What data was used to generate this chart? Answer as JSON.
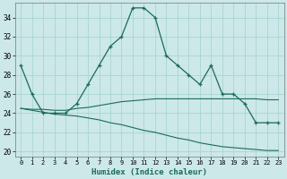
{
  "xlabel": "Humidex (Indice chaleur)",
  "ylabel": "",
  "xlim": [
    -0.5,
    23.5
  ],
  "ylim": [
    19.5,
    35.5
  ],
  "yticks": [
    20,
    22,
    24,
    26,
    28,
    30,
    32,
    34
  ],
  "xticks": [
    0,
    1,
    2,
    3,
    4,
    5,
    6,
    7,
    8,
    9,
    10,
    11,
    12,
    13,
    14,
    15,
    16,
    17,
    18,
    19,
    20,
    21,
    22,
    23
  ],
  "bg_color": "#cce8e8",
  "line_color": "#1a6b5a",
  "grid_color": "#aad4d4",
  "main_line": [
    29,
    26,
    24,
    24,
    24,
    25,
    27,
    29,
    31,
    32,
    35,
    35,
    34,
    30,
    29,
    28,
    27,
    29,
    26,
    26,
    25,
    23,
    23,
    23
  ],
  "upper_line": [
    24.5,
    24.4,
    24.4,
    24.3,
    24.3,
    24.5,
    24.6,
    24.8,
    25.0,
    25.2,
    25.3,
    25.4,
    25.5,
    25.5,
    25.5,
    25.5,
    25.5,
    25.5,
    25.5,
    25.5,
    25.5,
    25.5,
    25.4,
    25.4
  ],
  "lower_line": [
    24.5,
    24.3,
    24.1,
    23.9,
    23.8,
    23.7,
    23.5,
    23.3,
    23.0,
    22.8,
    22.5,
    22.2,
    22.0,
    21.7,
    21.4,
    21.2,
    20.9,
    20.7,
    20.5,
    20.4,
    20.3,
    20.2,
    20.1,
    20.1
  ]
}
